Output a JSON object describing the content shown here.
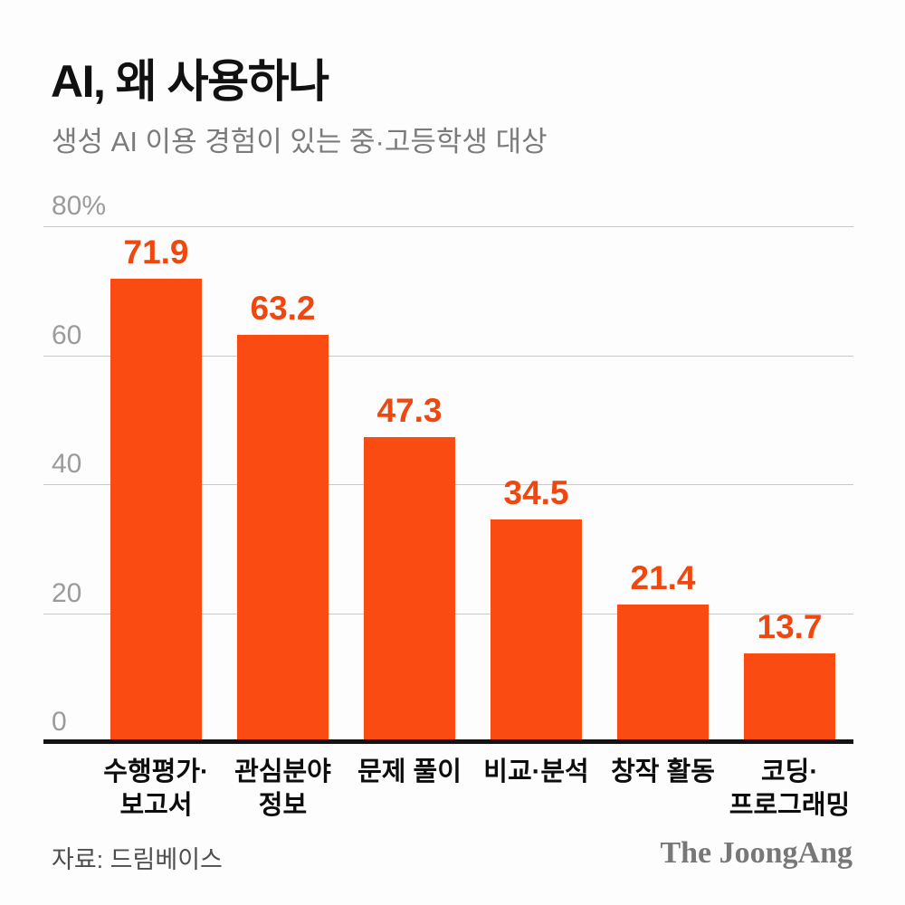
{
  "header": {
    "title": "AI, 왜 사용하나",
    "subtitle": "생성 AI 이용 경험이 있는 중·고등학생 대상"
  },
  "chart_data": {
    "type": "bar",
    "title": "AI, 왜 사용하나",
    "subtitle": "생성 AI 이용 경험이 있는 중·고등학생 대상",
    "categories": [
      "수행평가·보고서",
      "관심분야 정보",
      "문제 풀이",
      "비교·분석",
      "창작 활동",
      "코딩·프로그래밍"
    ],
    "category_lines": [
      [
        "수행평가·",
        "보고서"
      ],
      [
        "관심분야",
        "정보"
      ],
      [
        "문제 풀이"
      ],
      [
        "비교·분석"
      ],
      [
        "창작 활동"
      ],
      [
        "코딩·",
        "프로그래밍"
      ]
    ],
    "values": [
      71.9,
      63.2,
      47.3,
      34.5,
      21.4,
      13.7
    ],
    "value_labels": [
      "71.9",
      "63.2",
      "47.3",
      "34.5",
      "21.4",
      "13.7"
    ],
    "unit": "%",
    "ylim": [
      0,
      80
    ],
    "yticks": [
      {
        "value": 80,
        "label": "80%"
      },
      {
        "value": 60,
        "label": "60"
      },
      {
        "value": 40,
        "label": "40"
      },
      {
        "value": 20,
        "label": "20"
      },
      {
        "value": 0,
        "label": "0"
      }
    ],
    "grid": true,
    "legend": false,
    "bar_color": "#f94b12",
    "value_label_color": "#ee4710",
    "axis_line_color": "#131313",
    "gridline_color": "#c9c9c9"
  },
  "footer": {
    "source": "자료: 드림베이스",
    "logo": "The JoongAng"
  }
}
